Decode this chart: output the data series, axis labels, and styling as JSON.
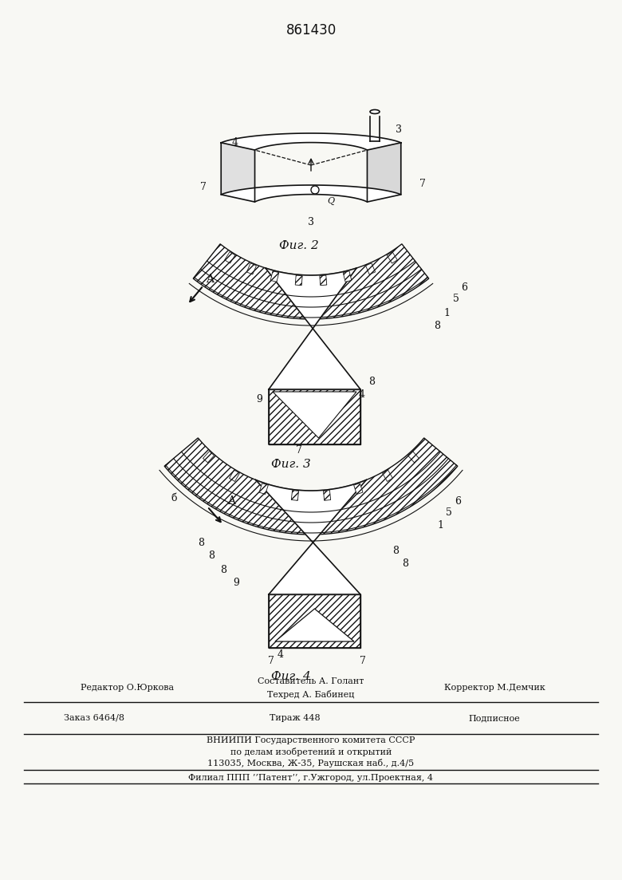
{
  "patent_number": "861430",
  "bg_color": "#f8f8f4",
  "line_color": "#111111",
  "fig2_caption": "Фиг. 2",
  "fig3_caption": "Фиг. 3",
  "fig4_caption": "Фиг. 4",
  "footer_line1_left": "Редактор О.Юркова",
  "footer_line1_center": "Составитель А. Голант",
  "footer_line2_center": "Техред А. Бабинец",
  "footer_line2_right": "Корректор М.Демчик",
  "footer_order": "Заказ 6464/8",
  "footer_tirazh": "Тираж 448",
  "footer_podp": "Подписное",
  "footer_vniip": "ВНИИПИ Государственного комитета СССР",
  "footer_po": "по делам изобретений и открытий",
  "footer_addr": "113035, Москва, Ж-35, Раушская наб., д.4/5",
  "footer_filial": "Филиал ППП ’’Патент’’, г.Ужгород, ул.Проектная, 4"
}
